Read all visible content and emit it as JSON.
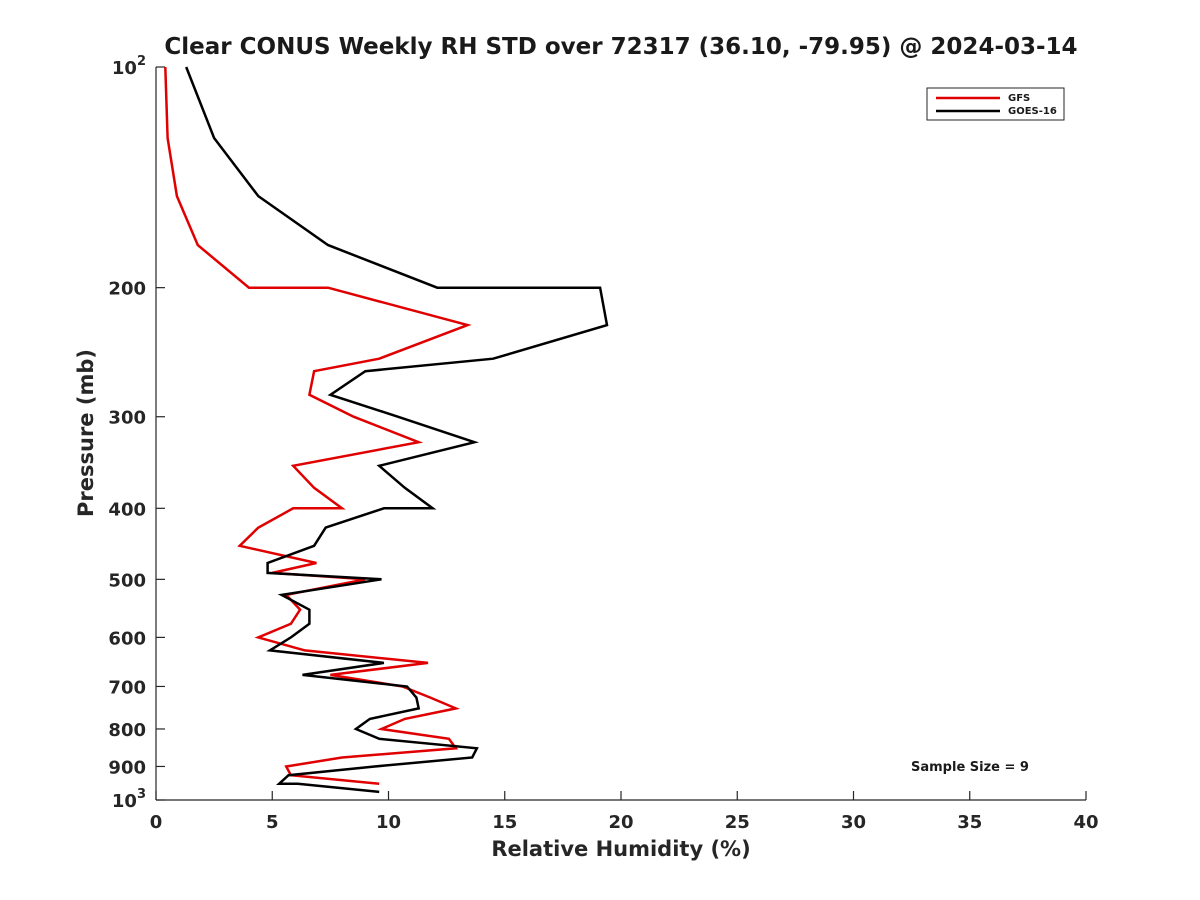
{
  "chart_data": {
    "type": "line",
    "title": "Clear CONUS Weekly RH STD over 72317 (36.10, -79.95) @ 2024-03-14",
    "xlabel": "Relative Humidity (%)",
    "ylabel": "Pressure (mb)",
    "xlim": [
      0,
      40
    ],
    "ylim": [
      100,
      1000
    ],
    "y_scale": "log",
    "y_reversed": true,
    "grid": false,
    "legend_position": "top-right",
    "x_ticks": [
      "0",
      "5",
      "10",
      "15",
      "20",
      "25",
      "30",
      "35",
      "40"
    ],
    "y_ticks": [
      {
        "value": 100,
        "base": "10",
        "exp": "2"
      },
      {
        "value": 200,
        "label": "200"
      },
      {
        "value": 300,
        "label": "300"
      },
      {
        "value": 400,
        "label": "400"
      },
      {
        "value": 500,
        "label": "500"
      },
      {
        "value": 600,
        "label": "600"
      },
      {
        "value": 700,
        "label": "700"
      },
      {
        "value": 800,
        "label": "800"
      },
      {
        "value": 900,
        "label": "900"
      },
      {
        "value": 1000,
        "base": "10",
        "exp": "3"
      }
    ],
    "annotation": "Sample Size = 9",
    "series": [
      {
        "name": "GFS",
        "color": "#e00000",
        "points": [
          [
            0.4,
            100
          ],
          [
            0.5,
            125
          ],
          [
            0.9,
            150
          ],
          [
            1.8,
            175
          ],
          [
            4.0,
            200
          ],
          [
            7.4,
            200
          ],
          [
            13.4,
            225
          ],
          [
            9.6,
            250
          ],
          [
            6.8,
            260
          ],
          [
            6.6,
            280
          ],
          [
            8.5,
            300
          ],
          [
            11.3,
            325
          ],
          [
            5.9,
            350
          ],
          [
            6.8,
            375
          ],
          [
            8.0,
            400
          ],
          [
            5.9,
            400
          ],
          [
            4.4,
            425
          ],
          [
            3.6,
            450
          ],
          [
            6.9,
            475
          ],
          [
            5.0,
            490
          ],
          [
            9.0,
            500
          ],
          [
            5.6,
            525
          ],
          [
            6.2,
            550
          ],
          [
            5.8,
            575
          ],
          [
            4.4,
            600
          ],
          [
            6.4,
            625
          ],
          [
            11.7,
            650
          ],
          [
            7.5,
            675
          ],
          [
            10.6,
            700
          ],
          [
            11.8,
            725
          ],
          [
            12.9,
            750
          ],
          [
            10.7,
            775
          ],
          [
            9.7,
            800
          ],
          [
            12.6,
            825
          ],
          [
            12.9,
            850
          ],
          [
            8.0,
            875
          ],
          [
            5.6,
            900
          ],
          [
            5.8,
            925
          ],
          [
            9.6,
            950
          ]
        ]
      },
      {
        "name": "GOES-16",
        "color": "#000000",
        "points": [
          [
            1.3,
            100
          ],
          [
            2.5,
            125
          ],
          [
            4.4,
            150
          ],
          [
            7.4,
            175
          ],
          [
            12.1,
            200
          ],
          [
            19.1,
            200
          ],
          [
            19.4,
            225
          ],
          [
            14.5,
            250
          ],
          [
            9.0,
            260
          ],
          [
            7.5,
            280
          ],
          [
            10.4,
            300
          ],
          [
            13.7,
            325
          ],
          [
            9.6,
            350
          ],
          [
            10.7,
            375
          ],
          [
            11.9,
            400
          ],
          [
            9.8,
            400
          ],
          [
            7.3,
            425
          ],
          [
            6.8,
            450
          ],
          [
            4.8,
            475
          ],
          [
            4.8,
            490
          ],
          [
            9.7,
            500
          ],
          [
            5.4,
            525
          ],
          [
            6.6,
            550
          ],
          [
            6.6,
            575
          ],
          [
            5.8,
            600
          ],
          [
            4.9,
            625
          ],
          [
            9.8,
            650
          ],
          [
            6.3,
            675
          ],
          [
            10.8,
            700
          ],
          [
            11.2,
            725
          ],
          [
            11.3,
            750
          ],
          [
            9.2,
            775
          ],
          [
            8.6,
            800
          ],
          [
            9.6,
            825
          ],
          [
            13.8,
            850
          ],
          [
            13.6,
            875
          ],
          [
            9.4,
            900
          ],
          [
            5.7,
            925
          ],
          [
            5.3,
            950
          ],
          [
            6.1,
            950
          ],
          [
            9.6,
            975
          ]
        ]
      }
    ]
  }
}
